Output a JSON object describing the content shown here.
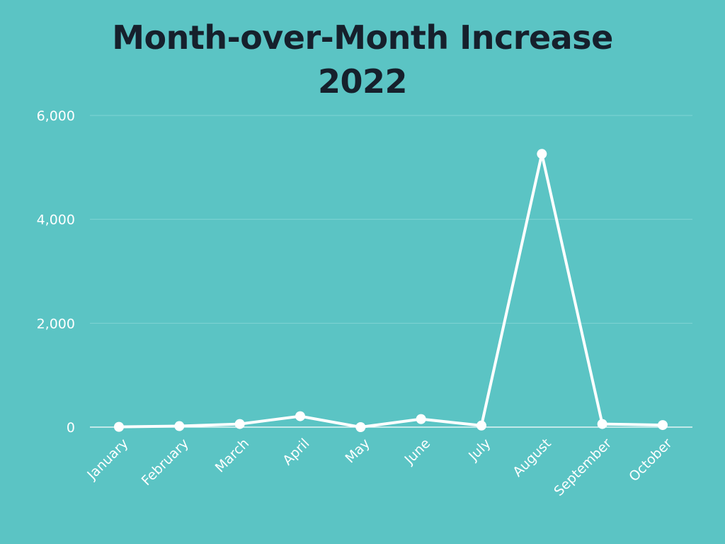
{
  "chart_data": {
    "type": "line",
    "title": "Month-over-Month Increase",
    "subtitle": "2022",
    "xlabel": "",
    "ylabel": "",
    "categories": [
      "January",
      "February",
      "March",
      "April",
      "May",
      "June",
      "July",
      "August",
      "September",
      "October"
    ],
    "series": [
      {
        "values": [
          5,
          20,
          60,
          210,
          0,
          155,
          30,
          5260,
          60,
          40
        ]
      }
    ],
    "ylim": [
      0,
      6000
    ],
    "yticks": [
      0,
      2000,
      4000,
      6000
    ],
    "ytick_labels": [
      "0",
      "2,000",
      "4,000",
      "6,000"
    ],
    "grid": true,
    "legend": "none",
    "colors": {
      "background": "#5bc4c4",
      "line": "#ffffff",
      "grid": "#7fd3d3",
      "title": "#16202c"
    }
  }
}
